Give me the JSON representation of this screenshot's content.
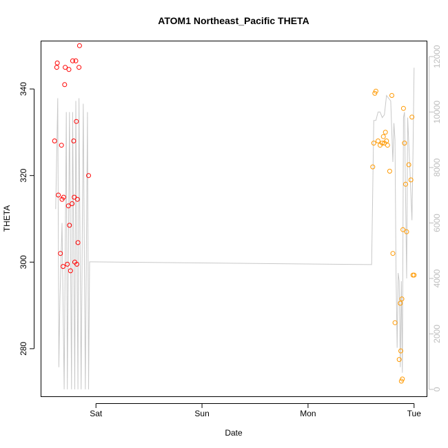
{
  "chart_data": {
    "type": "scatter",
    "title": "ATOM1 Northeast_Pacific THETA",
    "xlabel": "Date",
    "ylabel": "THETA",
    "x_unit": "days (0 = Sat 00:00)",
    "xlim": [
      -0.45,
      3.06
    ],
    "ylim": [
      269,
      351
    ],
    "y2lim": [
      -250,
      12550
    ],
    "x_ticks": [
      {
        "value": 0,
        "label": "Sat"
      },
      {
        "value": 1,
        "label": "Sun"
      },
      {
        "value": 2,
        "label": "Mon"
      },
      {
        "value": 3,
        "label": "Tue"
      }
    ],
    "y_ticks": [
      280,
      300,
      320,
      340
    ],
    "y2_ticks": [
      0,
      2000,
      4000,
      6000,
      8000,
      10000,
      12000
    ],
    "grid": false,
    "legend": "none",
    "series": [
      {
        "color": "#ff0000",
        "marker": "open-circle",
        "x": [
          -0.39,
          -0.37,
          -0.365,
          -0.355,
          -0.335,
          -0.325,
          -0.32,
          -0.31,
          -0.305,
          -0.295,
          -0.29,
          -0.27,
          -0.26,
          -0.255,
          -0.25,
          -0.24,
          -0.225,
          -0.22,
          -0.21,
          -0.205,
          -0.2,
          -0.19,
          -0.185,
          -0.18,
          -0.175,
          -0.17,
          -0.16,
          -0.155,
          -0.07
        ],
        "y": [
          328,
          345,
          346,
          315.5,
          302,
          327,
          314.5,
          299,
          315,
          341,
          345,
          299.5,
          313,
          344.5,
          308.5,
          298,
          313.5,
          346.5,
          328,
          315,
          300,
          346.5,
          332.5,
          299.5,
          314.5,
          304.5,
          345,
          350,
          320
        ]
      },
      {
        "color": "#ff9900",
        "marker": "open-circle",
        "x": [
          2.61,
          2.62,
          2.63,
          2.64,
          2.66,
          2.68,
          2.7,
          2.71,
          2.72,
          2.73,
          2.74,
          2.75,
          2.77,
          2.79,
          2.8,
          2.82,
          2.86,
          2.87,
          2.875,
          2.88,
          2.885,
          2.89,
          2.895,
          2.9,
          2.91,
          2.92,
          2.93,
          2.95,
          2.97,
          2.98,
          2.99,
          3.0
        ],
        "y": [
          322,
          327.5,
          339,
          339.5,
          328,
          327,
          327.5,
          329,
          327.5,
          330,
          328,
          327,
          321,
          338.5,
          302,
          286,
          277.5,
          290.5,
          279.5,
          272.5,
          291.5,
          273,
          307.5,
          335.5,
          327.5,
          318,
          307,
          322.5,
          319,
          333.5,
          297,
          297
        ]
      }
    ],
    "secondary_series": {
      "color": "#c8c8c8",
      "axis": "right",
      "x": [
        -0.38,
        -0.36,
        -0.35,
        -0.34,
        -0.32,
        -0.3,
        -0.28,
        -0.27,
        -0.25,
        -0.23,
        -0.22,
        -0.2,
        -0.19,
        -0.17,
        -0.16,
        -0.14,
        -0.12,
        -0.1,
        -0.08,
        -0.07,
        -0.06,
        -0.05,
        2.6,
        2.62,
        2.64,
        2.66,
        2.68,
        2.7,
        2.72,
        2.74,
        2.76,
        2.78,
        2.8,
        2.81,
        2.82,
        2.83,
        2.84,
        2.85,
        2.86,
        2.87,
        2.88,
        2.89,
        2.9,
        2.91,
        2.92,
        2.93,
        2.94,
        2.96,
        2.98,
        2.99,
        3.0
      ],
      "y": [
        6500,
        10500,
        800,
        3200,
        6000,
        0,
        10000,
        0,
        10000,
        0,
        10000,
        0,
        10400,
        0,
        10500,
        0,
        10300,
        0,
        10000,
        0,
        4600,
        4600,
        4500,
        9700,
        9700,
        10000,
        10000,
        9800,
        9900,
        10600,
        10500,
        10400,
        8200,
        9600,
        9000,
        4200,
        1500,
        4200,
        3900,
        800,
        3900,
        600,
        9800,
        10000,
        6800,
        4000,
        9800,
        8000,
        6100,
        8500,
        11600
      ]
    }
  }
}
